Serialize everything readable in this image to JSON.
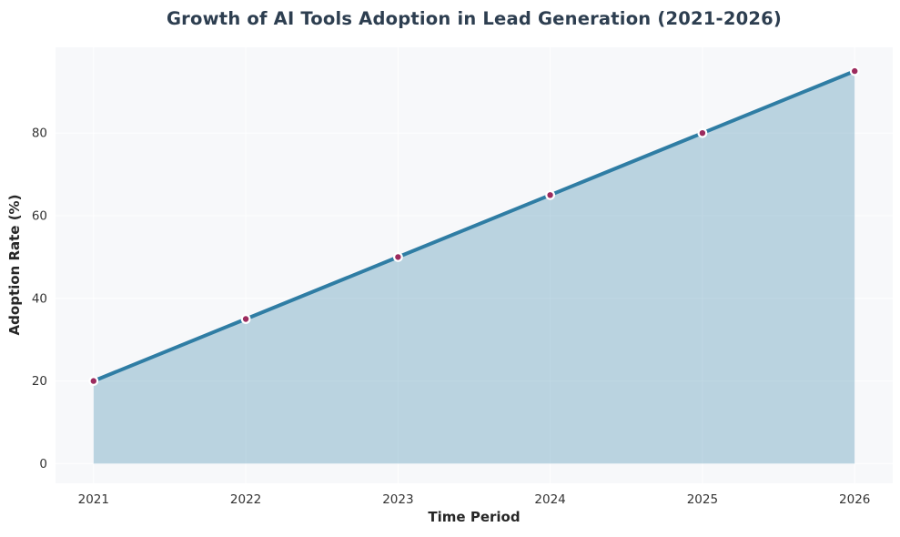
{
  "chart_data": {
    "type": "area",
    "title": "Growth of AI Tools Adoption in Lead Generation (2021-2026)",
    "categories": [
      "2021",
      "2022",
      "2023",
      "2024",
      "2025",
      "2026"
    ],
    "values": [
      20,
      35,
      50,
      65,
      80,
      95
    ],
    "xlabel": "Time Period",
    "ylabel": "Adoption Rate (%)",
    "yticks": [
      0,
      20,
      40,
      60,
      80
    ],
    "ylim": [
      -4.75,
      100.75
    ],
    "grid": "faint-white",
    "legend_position": "none",
    "marker": "circle",
    "colors": {
      "line": "#2f7da4",
      "area_fill": "rgba(47,125,164,0.30)",
      "marker_fill": "#9c2b5e",
      "marker_edge": "#ffffff",
      "plot_background": "#f7f8fa",
      "figure_background": "#ffffff",
      "gridline": "#ffffff",
      "title_text": "#2d3e50",
      "tick_text": "#333333",
      "axis_label_text": "#262626"
    }
  }
}
